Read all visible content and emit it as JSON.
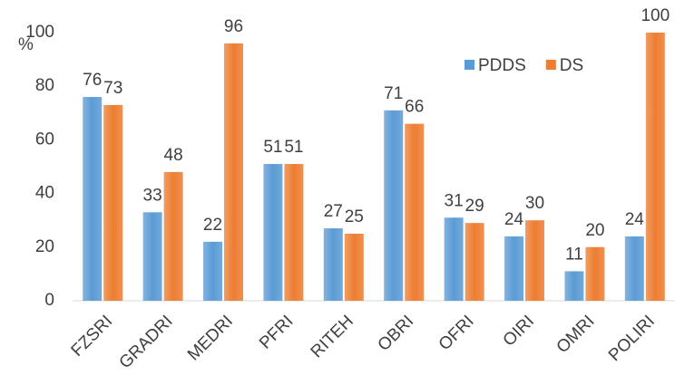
{
  "chart_data": {
    "type": "bar",
    "y_label": "%",
    "categories": [
      "FZSRI",
      "GRADRI",
      "MEDRI",
      "PFRI",
      "RITEH",
      "OBRI",
      "OFRI",
      "OIRI",
      "OMRI",
      "POLIRI"
    ],
    "series": [
      {
        "name": "PDDS",
        "color": "#5b9bd5",
        "values": [
          76,
          33,
          22,
          51,
          27,
          71,
          31,
          24,
          11,
          24
        ]
      },
      {
        "name": "DS",
        "color": "#ed7d31",
        "values": [
          73,
          48,
          96,
          51,
          25,
          66,
          29,
          30,
          20,
          100
        ]
      }
    ],
    "ylim": [
      0,
      100
    ],
    "yticks": [
      0,
      20,
      40,
      60,
      80,
      100
    ],
    "grid": false,
    "legend": "top-right"
  }
}
